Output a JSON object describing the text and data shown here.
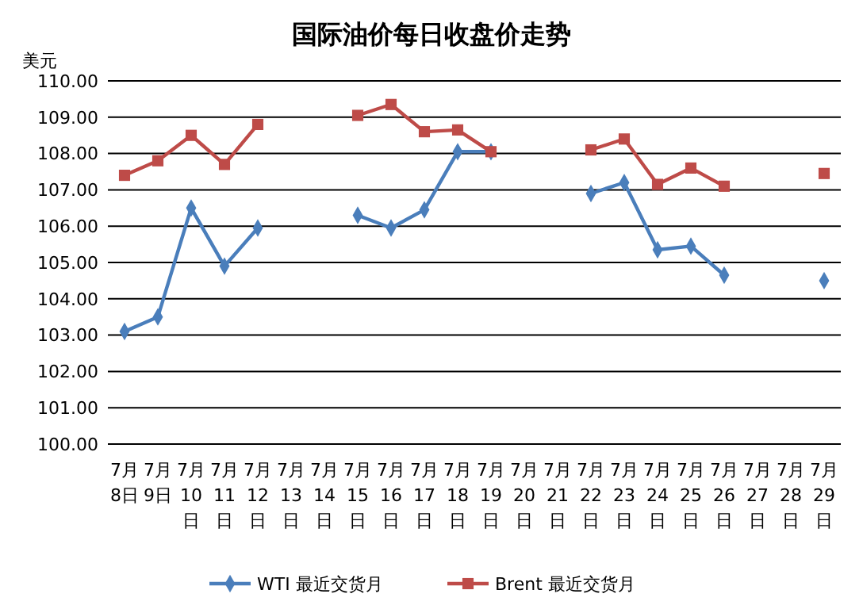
{
  "chart_data": {
    "type": "line",
    "title": "国际油价每日收盘价走势",
    "ylabel": "美元",
    "categories": [
      "7月8日",
      "7月9日",
      "7月10日",
      "7月11日",
      "7月12日",
      "7月13日",
      "7月14日",
      "7月15日",
      "7月16日",
      "7月17日",
      "7月18日",
      "7月19日",
      "7月20日",
      "7月21日",
      "7月22日",
      "7月23日",
      "7月24日",
      "7月25日",
      "7月26日",
      "7月27日",
      "7月28日",
      "7月29日"
    ],
    "series": [
      {
        "name": "WTI 最近交货月",
        "color": "#4a7ebb",
        "marker": "diamond",
        "values": [
          103.1,
          103.5,
          106.5,
          104.9,
          105.95,
          null,
          null,
          106.3,
          105.95,
          106.45,
          108.05,
          108.05,
          null,
          null,
          106.9,
          107.2,
          105.35,
          105.45,
          104.65,
          null,
          null,
          104.5
        ]
      },
      {
        "name": "Brent 最近交货月",
        "color": "#be4b48",
        "marker": "square",
        "values": [
          107.4,
          107.8,
          108.5,
          107.7,
          108.8,
          null,
          null,
          109.05,
          109.35,
          108.6,
          108.65,
          108.05,
          null,
          null,
          108.1,
          108.4,
          107.15,
          107.6,
          107.1,
          null,
          null,
          107.45
        ]
      }
    ],
    "ylim": [
      100,
      110
    ],
    "yticks": [
      {
        "value": 100,
        "label": "100.00"
      },
      {
        "value": 101,
        "label": "101.00"
      },
      {
        "value": 102,
        "label": "102.00"
      },
      {
        "value": 103,
        "label": "103.00"
      },
      {
        "value": 104,
        "label": "104.00"
      },
      {
        "value": 105,
        "label": "105.00"
      },
      {
        "value": 106,
        "label": "106.00"
      },
      {
        "value": 107,
        "label": "107.00"
      },
      {
        "value": 108,
        "label": "108.00"
      },
      {
        "value": 109,
        "label": "109.00"
      },
      {
        "value": 110,
        "label": "110.00"
      }
    ],
    "grid": "y",
    "legend": "bottom",
    "line_style": "solid"
  }
}
